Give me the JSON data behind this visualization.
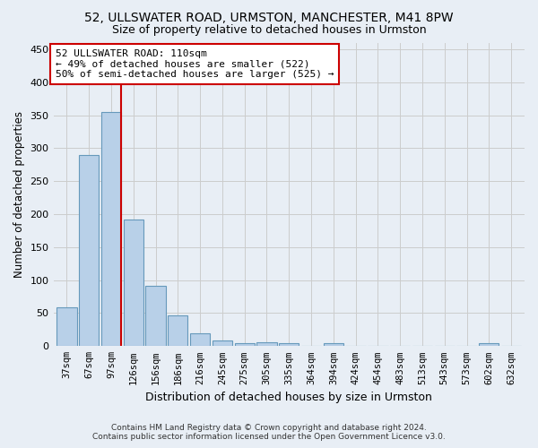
{
  "title1": "52, ULLSWATER ROAD, URMSTON, MANCHESTER, M41 8PW",
  "title2": "Size of property relative to detached houses in Urmston",
  "xlabel": "Distribution of detached houses by size in Urmston",
  "ylabel": "Number of detached properties",
  "footer1": "Contains HM Land Registry data © Crown copyright and database right 2024.",
  "footer2": "Contains public sector information licensed under the Open Government Licence v3.0.",
  "bar_labels": [
    "37sqm",
    "67sqm",
    "97sqm",
    "126sqm",
    "156sqm",
    "186sqm",
    "216sqm",
    "245sqm",
    "275sqm",
    "305sqm",
    "335sqm",
    "364sqm",
    "394sqm",
    "424sqm",
    "454sqm",
    "483sqm",
    "513sqm",
    "543sqm",
    "573sqm",
    "602sqm",
    "632sqm"
  ],
  "bar_values": [
    59,
    290,
    355,
    192,
    91,
    46,
    19,
    9,
    5,
    6,
    5,
    0,
    4,
    0,
    0,
    0,
    0,
    0,
    0,
    4,
    0
  ],
  "bar_color": "#b8d0e8",
  "bar_edge_color": "#6699bb",
  "grid_color": "#cccccc",
  "bg_color": "#e8eef5",
  "vline_color": "#cc0000",
  "annotation_text": "52 ULLSWATER ROAD: 110sqm\n← 49% of detached houses are smaller (522)\n50% of semi-detached houses are larger (525) →",
  "annotation_box_color": "white",
  "annotation_box_edge": "#cc0000",
  "ylim": [
    0,
    460
  ],
  "yticks": [
    0,
    50,
    100,
    150,
    200,
    250,
    300,
    350,
    400,
    450
  ]
}
